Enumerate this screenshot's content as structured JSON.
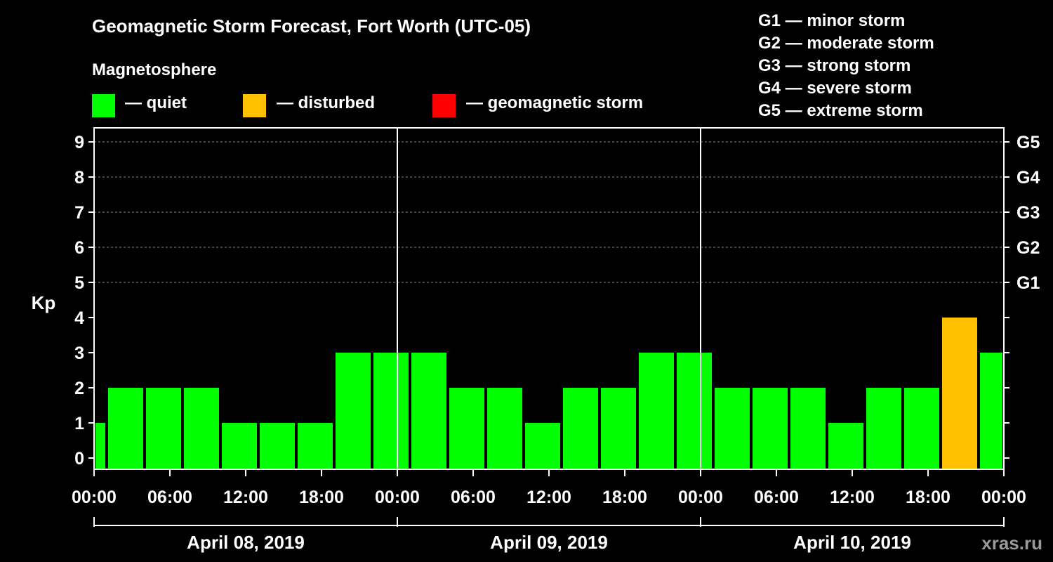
{
  "title": "Geomagnetic Storm Forecast, Fort Worth (UTC-05)",
  "subtitle": "Magnetosphere",
  "legend": [
    {
      "label": "— quiet",
      "color": "#00ff00"
    },
    {
      "label": "— disturbed",
      "color": "#ffc000"
    },
    {
      "label": "— geomagnetic storm",
      "color": "#ff0000"
    }
  ],
  "storm_scale": [
    "G1 — minor storm",
    "G2 — moderate storm",
    "G3 — strong storm",
    "G4 — severe storm",
    "G5 — extreme storm"
  ],
  "watermark": "xras.ru",
  "chart_data": {
    "type": "bar",
    "title": "Geomagnetic Storm Forecast, Fort Worth (UTC-05)",
    "ylabel": "Kp",
    "ylim": [
      0,
      9
    ],
    "y_ticks": [
      "0",
      "1",
      "2",
      "3",
      "4",
      "5",
      "6",
      "7",
      "8",
      "9"
    ],
    "right_ticks": [
      {
        "kp": 5,
        "label": "G1"
      },
      {
        "kp": 6,
        "label": "G2"
      },
      {
        "kp": 7,
        "label": "G3"
      },
      {
        "kp": 8,
        "label": "G4"
      },
      {
        "kp": 9,
        "label": "G5"
      }
    ],
    "x_ticks": [
      "00:00",
      "06:00",
      "12:00",
      "18:00",
      "00:00",
      "06:00",
      "12:00",
      "18:00",
      "00:00",
      "06:00",
      "12:00",
      "18:00",
      "00:00"
    ],
    "days": [
      "April 08, 2019",
      "April 09, 2019",
      "April 10, 2019"
    ],
    "hours_total": 72,
    "bars": [
      {
        "start": -2,
        "end": 1,
        "value": 1,
        "status": "quiet"
      },
      {
        "start": 1,
        "end": 4,
        "value": 2,
        "status": "quiet"
      },
      {
        "start": 4,
        "end": 7,
        "value": 2,
        "status": "quiet"
      },
      {
        "start": 7,
        "end": 10,
        "value": 2,
        "status": "quiet"
      },
      {
        "start": 10,
        "end": 13,
        "value": 1,
        "status": "quiet"
      },
      {
        "start": 13,
        "end": 16,
        "value": 1,
        "status": "quiet"
      },
      {
        "start": 16,
        "end": 19,
        "value": 1,
        "status": "quiet"
      },
      {
        "start": 19,
        "end": 22,
        "value": 3,
        "status": "quiet"
      },
      {
        "start": 22,
        "end": 25,
        "value": 3,
        "status": "quiet"
      },
      {
        "start": 25,
        "end": 28,
        "value": 3,
        "status": "quiet"
      },
      {
        "start": 28,
        "end": 31,
        "value": 2,
        "status": "quiet"
      },
      {
        "start": 31,
        "end": 34,
        "value": 2,
        "status": "quiet"
      },
      {
        "start": 34,
        "end": 37,
        "value": 1,
        "status": "quiet"
      },
      {
        "start": 37,
        "end": 40,
        "value": 2,
        "status": "quiet"
      },
      {
        "start": 40,
        "end": 43,
        "value": 2,
        "status": "quiet"
      },
      {
        "start": 43,
        "end": 46,
        "value": 3,
        "status": "quiet"
      },
      {
        "start": 46,
        "end": 49,
        "value": 3,
        "status": "quiet"
      },
      {
        "start": 49,
        "end": 52,
        "value": 2,
        "status": "quiet"
      },
      {
        "start": 52,
        "end": 55,
        "value": 2,
        "status": "quiet"
      },
      {
        "start": 55,
        "end": 58,
        "value": 2,
        "status": "quiet"
      },
      {
        "start": 58,
        "end": 61,
        "value": 1,
        "status": "quiet"
      },
      {
        "start": 61,
        "end": 64,
        "value": 2,
        "status": "quiet"
      },
      {
        "start": 64,
        "end": 67,
        "value": 2,
        "status": "quiet"
      },
      {
        "start": 67,
        "end": 70,
        "value": 4,
        "status": "disturbed"
      },
      {
        "start": 70,
        "end": 73,
        "value": 3,
        "status": "quiet"
      }
    ],
    "status_colors": {
      "quiet": "#00ff00",
      "disturbed": "#ffc000",
      "storm": "#ff0000"
    },
    "grid": true
  }
}
